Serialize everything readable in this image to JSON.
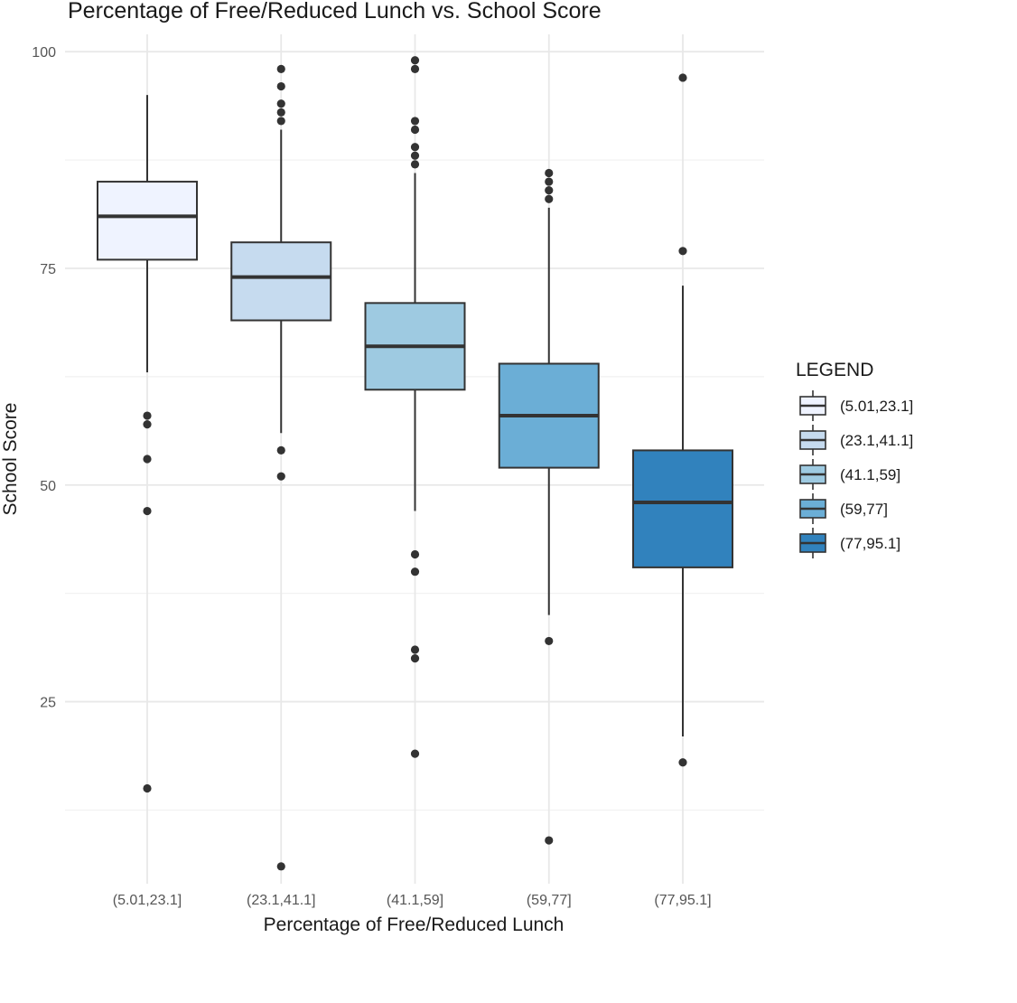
{
  "chart_data": {
    "type": "boxplot",
    "title": "Percentage of Free/Reduced Lunch vs. School Score",
    "xlabel": "Percentage of Free/Reduced Lunch",
    "ylabel": "School Score",
    "ylim": [
      4,
      102
    ],
    "yticks": [
      25,
      50,
      75,
      100
    ],
    "grid": true,
    "legend": {
      "title": "LEGEND",
      "position": "right"
    },
    "categories": [
      "(5.01,23.1]",
      "(23.1,41.1]",
      "(41.1,59]",
      "(59,77]",
      "(77,95.1]"
    ],
    "colors": [
      "#eff3ff",
      "#c6dbef",
      "#9ecae1",
      "#6baed6",
      "#3182bd"
    ],
    "boxes": [
      {
        "whisker_low": 63,
        "q1": 76,
        "median": 81,
        "q3": 85,
        "whisker_high": 95,
        "outliers": [
          58,
          57,
          53,
          47,
          15
        ]
      },
      {
        "whisker_low": 56,
        "q1": 69,
        "median": 74,
        "q3": 78,
        "whisker_high": 91,
        "outliers": [
          98,
          96,
          94,
          93,
          92,
          54,
          51,
          6
        ]
      },
      {
        "whisker_low": 47,
        "q1": 61,
        "median": 66,
        "q3": 71,
        "whisker_high": 86,
        "outliers": [
          99,
          98,
          92,
          91,
          89,
          88,
          87,
          42,
          40,
          31,
          30,
          19
        ]
      },
      {
        "whisker_low": 35,
        "q1": 52,
        "median": 58,
        "q3": 64,
        "whisker_high": 82,
        "outliers": [
          86,
          85,
          84,
          83,
          32,
          9
        ]
      },
      {
        "whisker_low": 21,
        "q1": 40.5,
        "median": 48,
        "q3": 54,
        "whisker_high": 73,
        "outliers": [
          97,
          77,
          18
        ]
      }
    ]
  }
}
